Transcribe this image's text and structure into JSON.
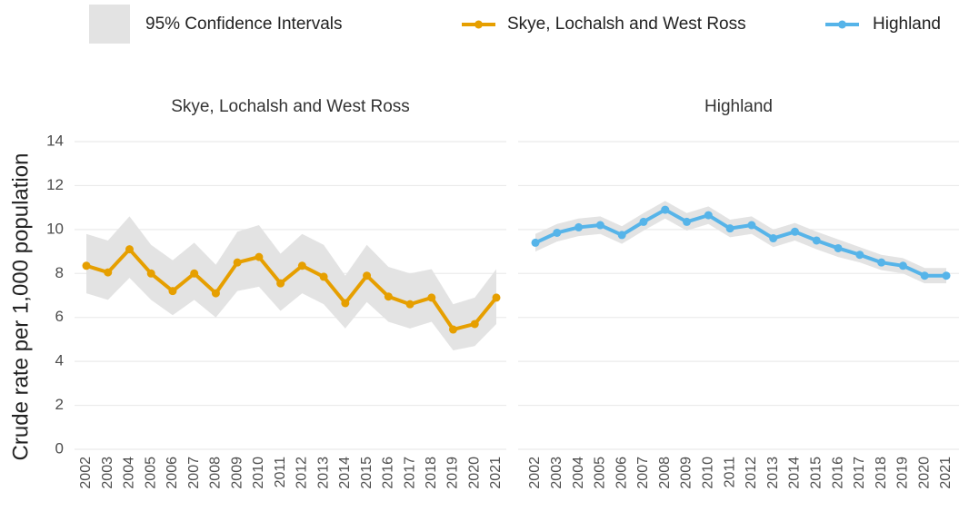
{
  "chart_data": {
    "type": "line",
    "ylabel": "Crude rate per 1,000 population",
    "ci_label": "95% Confidence Intervals",
    "ci_color": "#e3e3e3",
    "grid": true,
    "ylim": [
      0,
      14
    ],
    "yticks": [
      0,
      2,
      4,
      6,
      8,
      10,
      12,
      14
    ],
    "categories": [
      "2002",
      "2003",
      "2004",
      "2005",
      "2006",
      "2007",
      "2008",
      "2009",
      "2010",
      "2011",
      "2012",
      "2013",
      "2014",
      "2015",
      "2016",
      "2017",
      "2018",
      "2019",
      "2020",
      "2021"
    ],
    "panels": [
      {
        "series": [
          {
            "name": "Skye, Lochalsh and West Ross",
            "color": "#E69F00",
            "values": [
              8.35,
              8.05,
              9.1,
              8.0,
              7.2,
              8.0,
              7.1,
              8.5,
              8.75,
              7.55,
              8.35,
              7.85,
              6.65,
              7.9,
              6.95,
              6.6,
              6.9,
              5.45,
              5.7,
              6.9
            ],
            "ci_lower": [
              7.1,
              6.8,
              7.8,
              6.8,
              6.1,
              6.8,
              6.0,
              7.2,
              7.4,
              6.3,
              7.1,
              6.6,
              5.5,
              6.7,
              5.8,
              5.5,
              5.8,
              4.5,
              4.7,
              5.7
            ],
            "ci_upper": [
              9.8,
              9.5,
              10.6,
              9.3,
              8.6,
              9.4,
              8.4,
              9.9,
              10.2,
              8.9,
              9.8,
              9.3,
              7.9,
              9.3,
              8.3,
              8.0,
              8.2,
              6.6,
              6.9,
              8.2
            ]
          }
        ]
      },
      {
        "series": [
          {
            "name": "Highland",
            "color": "#56B4E9",
            "values": [
              9.4,
              9.85,
              10.1,
              10.2,
              9.75,
              10.35,
              10.9,
              10.35,
              10.65,
              10.05,
              10.2,
              9.6,
              9.9,
              9.5,
              9.15,
              8.85,
              8.5,
              8.35,
              7.9,
              7.9
            ],
            "ci_lower": [
              9.0,
              9.45,
              9.7,
              9.8,
              9.35,
              9.95,
              10.5,
              9.95,
              10.25,
              9.65,
              9.8,
              9.2,
              9.5,
              9.1,
              8.75,
              8.5,
              8.15,
              8.0,
              7.55,
              7.55
            ],
            "ci_upper": [
              9.8,
              10.25,
              10.5,
              10.6,
              10.15,
              10.75,
              11.3,
              10.75,
              11.05,
              10.45,
              10.6,
              10.0,
              10.3,
              9.9,
              9.55,
              9.2,
              8.85,
              8.7,
              8.25,
              8.25
            ]
          }
        ]
      }
    ]
  }
}
